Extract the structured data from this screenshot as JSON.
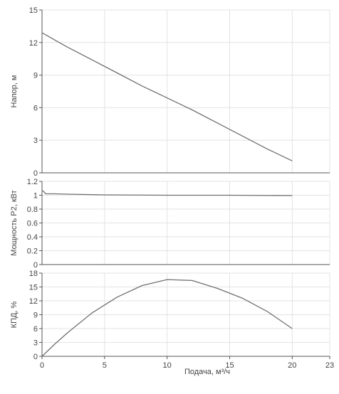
{
  "chart_data": [
    {
      "type": "line",
      "id": "head",
      "ylabel": "Напор, м",
      "ylim": [
        0,
        15
      ],
      "yticks": [
        0,
        3,
        6,
        9,
        12,
        15
      ],
      "xlim": [
        0,
        23
      ],
      "grid": true,
      "series": [
        {
          "x": [
            0,
            2,
            4,
            6,
            8,
            10,
            12,
            14,
            16,
            18,
            20
          ],
          "y": [
            12.9,
            11.6,
            10.4,
            9.2,
            8.0,
            6.9,
            5.8,
            4.6,
            3.4,
            2.2,
            1.1
          ]
        }
      ]
    },
    {
      "type": "line",
      "id": "power",
      "ylabel": "Мощность P2, кВт",
      "ylim": [
        0,
        1.2
      ],
      "yticks": [
        "0",
        "0.2",
        "0.4",
        "0.6",
        "0.8",
        "1",
        "1.2"
      ],
      "xlim": [
        0,
        23
      ],
      "grid": true,
      "series": [
        {
          "x": [
            0,
            0.15,
            0.3,
            0.6,
            1,
            2,
            5,
            10,
            15,
            20
          ],
          "y": [
            1.07,
            1.05,
            1.02,
            1.02,
            1.02,
            1.015,
            1.005,
            1.0,
            1.0,
            0.995
          ]
        }
      ]
    },
    {
      "type": "line",
      "id": "efficiency",
      "ylabel": "КПД, %",
      "xlabel": "Подача, м³/ч",
      "ylim": [
        0,
        18
      ],
      "yticks": [
        0,
        3,
        6,
        9,
        12,
        15,
        18
      ],
      "xlim": [
        0,
        23
      ],
      "xticks": [
        0,
        5,
        10,
        15,
        20,
        23
      ],
      "grid": true,
      "series": [
        {
          "x": [
            0,
            1,
            2,
            4,
            6,
            8,
            10,
            12,
            14,
            16,
            18,
            20
          ],
          "y": [
            0,
            2.6,
            5.0,
            9.4,
            12.8,
            15.3,
            16.6,
            16.4,
            14.7,
            12.6,
            9.7,
            6.0
          ]
        }
      ]
    }
  ]
}
